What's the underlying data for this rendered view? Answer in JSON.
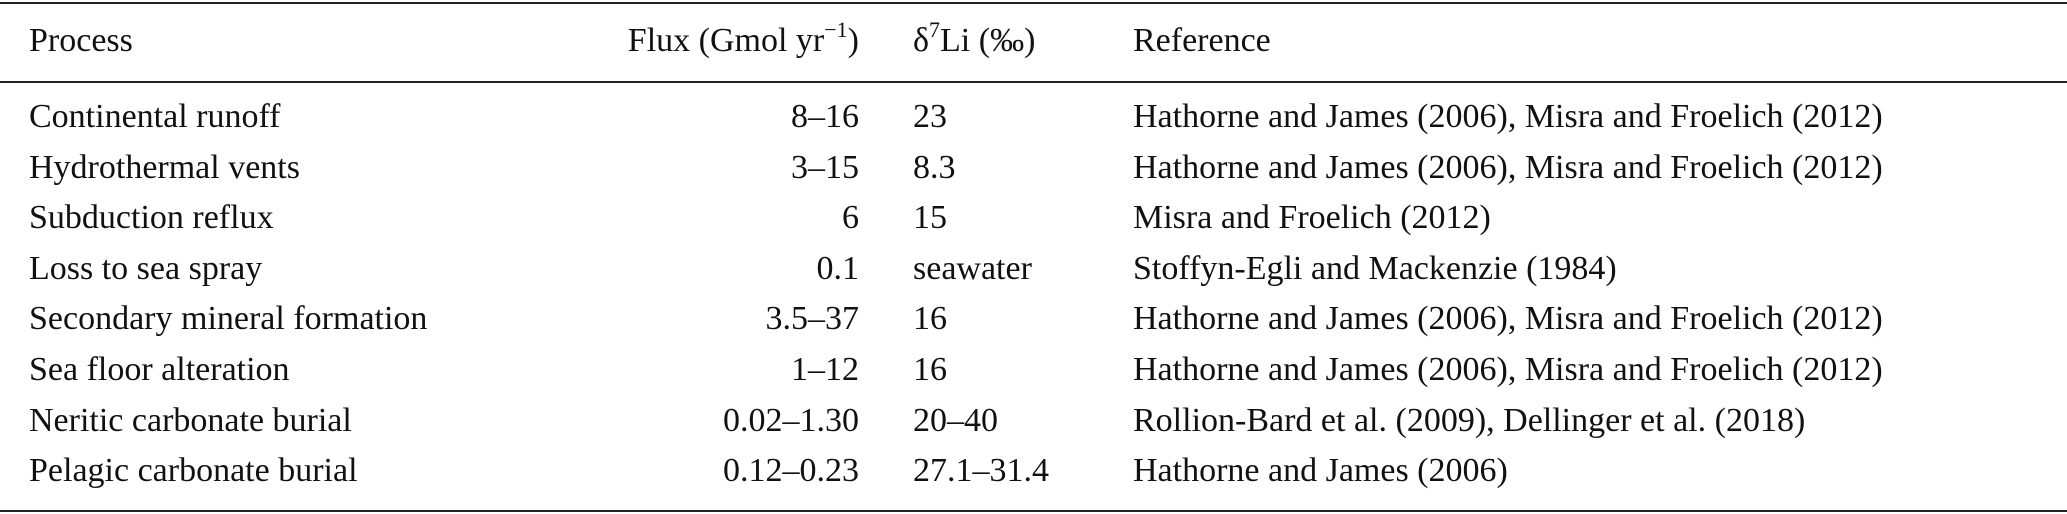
{
  "table": {
    "header": [
      [
        {
          "text": "Process"
        }
      ],
      [
        {
          "text": "Flux (Gmol yr"
        },
        {
          "sup": "−1"
        },
        {
          "text": ")"
        }
      ],
      [
        {
          "text": "δ"
        },
        {
          "sup": "7"
        },
        {
          "text": "Li (‰)"
        }
      ],
      [
        {
          "text": "Reference"
        }
      ]
    ],
    "rows": [
      [
        "Continental runoff",
        "8–16",
        "23",
        "Hathorne and James (2006), Misra and Froelich (2012)"
      ],
      [
        "Hydrothermal vents",
        "3–15",
        "8.3",
        "Hathorne and James (2006), Misra and Froelich (2012)"
      ],
      [
        "Subduction reflux",
        "6",
        "15",
        "Misra and Froelich (2012)"
      ],
      [
        "Loss to sea spray",
        "0.1",
        "seawater",
        "Stoffyn-Egli and Mackenzie (1984)"
      ],
      [
        "Secondary mineral formation",
        "3.5–37",
        "16",
        "Hathorne and James (2006), Misra and Froelich (2012)"
      ],
      [
        "Sea floor alteration",
        "1–12",
        "16",
        "Hathorne and James (2006), Misra and Froelich (2012)"
      ],
      [
        "Neritic carbonate burial",
        "0.02–1.30",
        "20–40",
        "Rollion-Bard et al. (2009), Dellinger et al. (2018)"
      ],
      [
        "Pelagic carbonate burial",
        "0.12–0.23",
        "27.1–31.4",
        "Hathorne and James (2006)"
      ]
    ]
  }
}
